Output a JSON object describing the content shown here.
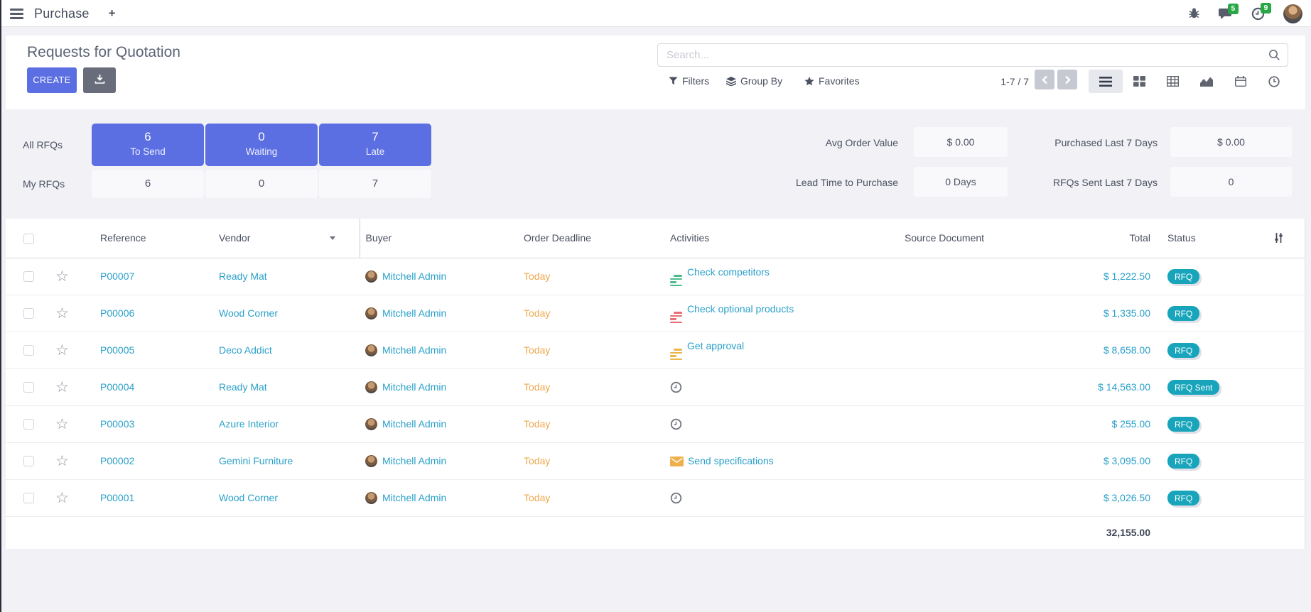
{
  "colors": {
    "primary": "#5b6fe2",
    "link": "#2aa0c9",
    "deadline_warning": "#eda84e",
    "status_badge": "#18a5bb",
    "notification_badge": "#28a745",
    "activity_green": "#4cbc8c",
    "activity_red": "#ea6d75",
    "activity_yellow": "#ecb44e"
  },
  "nav": {
    "app_name": "Purchase",
    "new_tab_label": "+",
    "messages_badge": "5",
    "activities_badge": "9",
    "icons": [
      "menu-icon",
      "bug-icon",
      "messages-icon",
      "activity-clock-icon",
      "user-avatar"
    ]
  },
  "control_panel": {
    "title": "Requests for Quotation",
    "create_label": "CREATE",
    "export_icon": "download-icon",
    "search_placeholder": "Search...",
    "filters_label": "Filters",
    "group_by_label": "Group By",
    "favorites_label": "Favorites",
    "pager": "1-7 / 7",
    "view_switcher": [
      "list-view",
      "kanban-view",
      "pivot-view",
      "graph-view",
      "calendar-view",
      "activity-view"
    ],
    "active_view": "list-view"
  },
  "dashboard": {
    "row_labels": {
      "all": "All RFQs",
      "my": "My RFQs"
    },
    "cards": [
      {
        "all_value": "6",
        "label": "To Send",
        "my_value": "6"
      },
      {
        "all_value": "0",
        "label": "Waiting",
        "my_value": "0"
      },
      {
        "all_value": "7",
        "label": "Late",
        "my_value": "7"
      }
    ],
    "kpis": [
      {
        "label": "Avg Order Value",
        "value": "$ 0.00"
      },
      {
        "label": "Lead Time to Purchase",
        "value": "0 Days"
      },
      {
        "label": "Purchased Last 7 Days",
        "value": "$ 0.00"
      },
      {
        "label": "RFQs Sent Last 7 Days",
        "value": "0"
      }
    ]
  },
  "table": {
    "headers": [
      "Reference",
      "Vendor",
      "Buyer",
      "Order Deadline",
      "Activities",
      "Source Document",
      "Total",
      "Status"
    ],
    "rows": [
      {
        "reference": "P00007",
        "vendor": "Ready Mat",
        "buyer": "Mitchell Admin",
        "deadline": "Today",
        "activity": "Check competitors",
        "activity_icon": "list",
        "activity_color": "green",
        "source": "",
        "total": "$ 1,222.50",
        "status": "RFQ"
      },
      {
        "reference": "P00006",
        "vendor": "Wood Corner",
        "buyer": "Mitchell Admin",
        "deadline": "Today",
        "activity": "Check optional products",
        "activity_icon": "list",
        "activity_color": "red",
        "source": "",
        "total": "$ 1,335.00",
        "status": "RFQ"
      },
      {
        "reference": "P00005",
        "vendor": "Deco Addict",
        "buyer": "Mitchell Admin",
        "deadline": "Today",
        "activity": "Get approval",
        "activity_icon": "list",
        "activity_color": "yellow",
        "source": "",
        "total": "$ 8,658.00",
        "status": "RFQ"
      },
      {
        "reference": "P00004",
        "vendor": "Ready Mat",
        "buyer": "Mitchell Admin",
        "deadline": "Today",
        "activity": "",
        "activity_icon": "clock",
        "activity_color": "",
        "source": "",
        "total": "$ 14,563.00",
        "status": "RFQ Sent"
      },
      {
        "reference": "P00003",
        "vendor": "Azure Interior",
        "buyer": "Mitchell Admin",
        "deadline": "Today",
        "activity": "",
        "activity_icon": "clock",
        "activity_color": "",
        "source": "",
        "total": "$ 255.00",
        "status": "RFQ"
      },
      {
        "reference": "P00002",
        "vendor": "Gemini Furniture",
        "buyer": "Mitchell Admin",
        "deadline": "Today",
        "activity": "Send specifications",
        "activity_icon": "envelope",
        "activity_color": "",
        "source": "",
        "total": "$ 3,095.00",
        "status": "RFQ"
      },
      {
        "reference": "P00001",
        "vendor": "Wood Corner",
        "buyer": "Mitchell Admin",
        "deadline": "Today",
        "activity": "",
        "activity_icon": "clock",
        "activity_color": "",
        "source": "",
        "total": "$ 3,026.50",
        "status": "RFQ"
      }
    ],
    "grand_total": "32,155.00"
  }
}
